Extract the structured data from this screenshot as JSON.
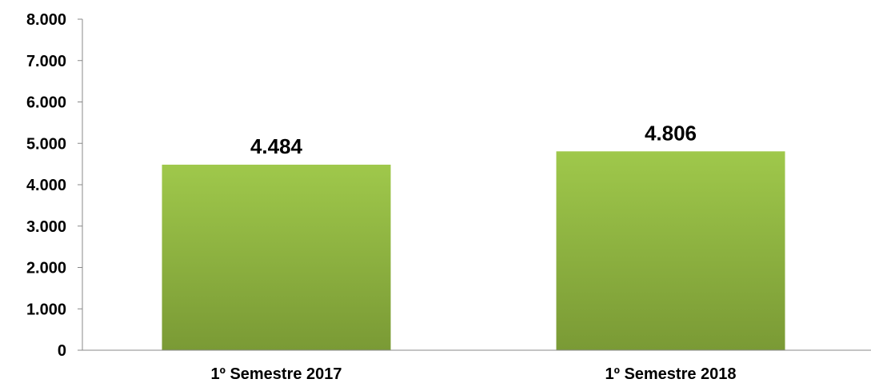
{
  "chart_data": {
    "type": "bar",
    "title": "",
    "xlabel": "",
    "ylabel": "",
    "categories": [
      "1º Semestre 2017",
      "1º Semestre 2018"
    ],
    "values": [
      4484,
      4806
    ],
    "data_labels": [
      "4.484",
      "4.806"
    ],
    "ylim": [
      0,
      8000
    ],
    "yticks": [
      0,
      1000,
      2000,
      3000,
      4000,
      5000,
      6000,
      7000,
      8000
    ],
    "ytick_labels": [
      "0",
      "1.000",
      "2.000",
      "3.000",
      "4.000",
      "5.000",
      "6.000",
      "7.000",
      "8.000"
    ],
    "grid": false,
    "legend": "none",
    "colors": {
      "bar_top": "#9fc84b",
      "bar_bottom": "#7a9a35",
      "axis": "#888888"
    }
  }
}
